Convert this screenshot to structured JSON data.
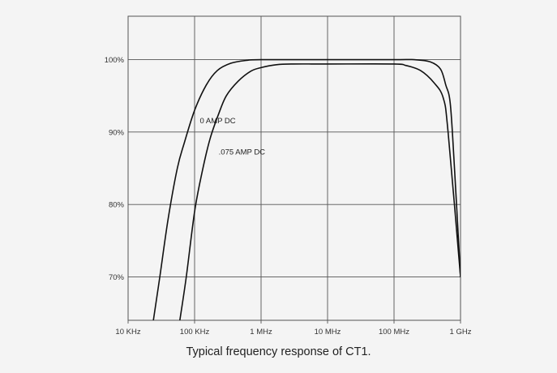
{
  "caption": "Typical frequency response of CT1.",
  "colors": {
    "background": "#f4f4f4",
    "grid": "#555555",
    "curve": "#111111"
  },
  "chart_data": {
    "type": "line",
    "title": "",
    "xlabel": "",
    "ylabel": "",
    "x_scale": "log",
    "x_unit": "Hz",
    "xlim": [
      10000,
      1000000000
    ],
    "ylim": [
      64,
      106
    ],
    "grid": true,
    "legend": "none",
    "x_tick_values": [
      10000,
      100000,
      1000000,
      10000000,
      100000000,
      1000000000
    ],
    "x_tick_labels": [
      "10 KHz",
      "100 KHz",
      "1 MHz",
      "10 MHz",
      "100 MHz",
      "1 GHz"
    ],
    "y_tick_values": [
      70,
      80,
      90,
      100
    ],
    "y_tick_labels": [
      "70%",
      "80%",
      "90%",
      "100%"
    ],
    "series": [
      {
        "name": "0 AMP DC",
        "x": [
          24000,
          30000,
          40000,
          55000,
          70000,
          100000,
          150000,
          220000,
          350000,
          600000,
          1000000,
          10000000,
          100000000,
          200000000,
          350000000,
          500000000,
          600000000,
          700000000,
          800000000,
          1000000000
        ],
        "y": [
          64,
          70,
          78,
          85,
          88.5,
          93,
          96.5,
          98.5,
          99.5,
          99.9,
          100,
          100,
          100,
          100,
          99.7,
          98.7,
          96.5,
          94,
          86,
          70
        ]
      },
      {
        "name": ".075 AMP DC",
        "x": [
          60000,
          75000,
          100000,
          130000,
          170000,
          230000,
          300000,
          450000,
          700000,
          1000000,
          1700000,
          3000000,
          10000000,
          100000000,
          150000000,
          250000000,
          400000000,
          550000000,
          650000000,
          1000000000
        ],
        "y": [
          64,
          70,
          79,
          84.5,
          89,
          92.5,
          95,
          97,
          98.4,
          98.9,
          99.3,
          99.4,
          99.4,
          99.4,
          99.2,
          98.5,
          96.8,
          94.7,
          90,
          70
        ]
      }
    ],
    "annotations": [
      {
        "text": "0 AMP DC",
        "x": 120000,
        "y": 91.2
      },
      {
        "text": ".075 AMP DC",
        "x": 230000,
        "y": 86.9
      }
    ]
  }
}
